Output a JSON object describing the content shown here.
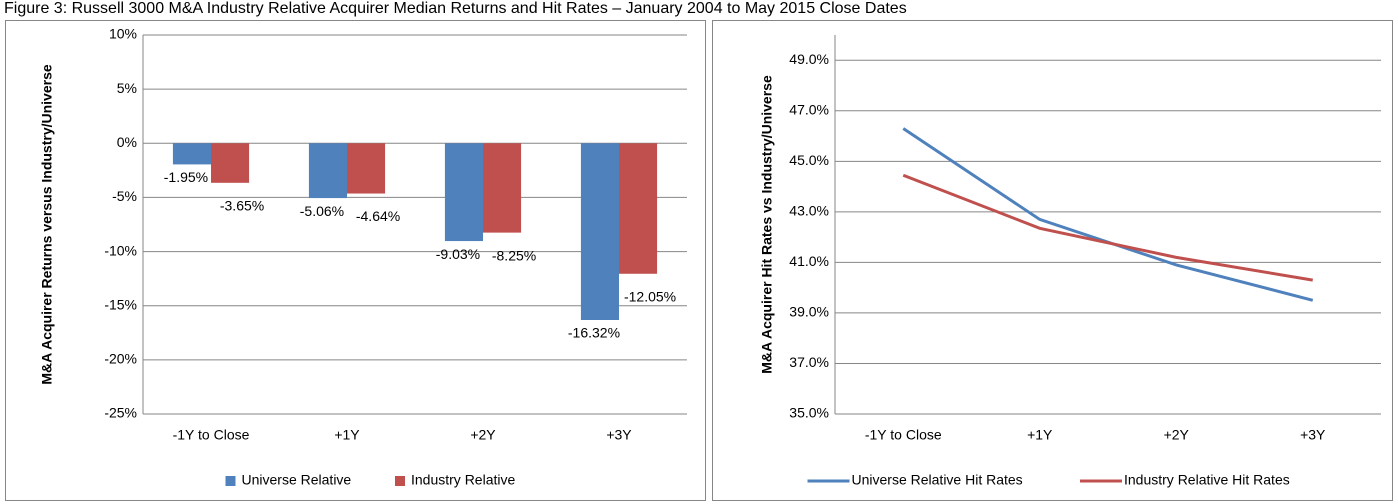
{
  "title": "Figure 3: Russell 3000 M&A Industry Relative Acquirer Median Returns and Hit Rates – January 2004 to May 2015 Close Dates",
  "chart_data": [
    {
      "type": "bar",
      "y_label": "M&A Acquirer Returns versus Industry/Universe",
      "categories": [
        "-1Y to Close",
        "+1Y",
        "+2Y",
        "+3Y"
      ],
      "series": [
        {
          "name": "Universe Relative",
          "color": "#4f81bd",
          "values": [
            -1.95,
            -5.06,
            -9.03,
            -16.32
          ],
          "value_labels": [
            "-1.95%",
            "-5.06%",
            "-9.03%",
            "-16.32%"
          ]
        },
        {
          "name": "Industry Relative",
          "color": "#c0504d",
          "values": [
            -3.65,
            -4.64,
            -8.25,
            -12.05
          ],
          "value_labels": [
            "-3.65%",
            "-4.64%",
            "-8.25%",
            "-12.05%"
          ]
        }
      ],
      "ylim": [
        -25,
        10
      ],
      "yticks": [
        {
          "value": -25,
          "label": "-25%"
        },
        {
          "value": -20,
          "label": "-20%"
        },
        {
          "value": -15,
          "label": "-15%"
        },
        {
          "value": -10,
          "label": "-10%"
        },
        {
          "value": -5,
          "label": "-5%"
        },
        {
          "value": 0,
          "label": "0%"
        },
        {
          "value": 5,
          "label": "5%"
        },
        {
          "value": 10,
          "label": "10%"
        }
      ],
      "grid": true,
      "legend": "bottom"
    },
    {
      "type": "line",
      "y_label": "M&A Acquirer Hit Rates vs Industry/Universe",
      "categories": [
        "-1Y to Close",
        "+1Y",
        "+2Y",
        "+3Y"
      ],
      "series": [
        {
          "name": "Universe Relative Hit Rates",
          "color": "#4f81bd",
          "values": [
            46.3,
            42.7,
            40.9,
            39.5
          ]
        },
        {
          "name": "Industry Relative Hit Rates",
          "color": "#c0504d",
          "values": [
            44.45,
            42.35,
            41.2,
            40.3
          ]
        }
      ],
      "ylim": [
        35,
        50
      ],
      "yticks": [
        {
          "value": 35,
          "label": "35.0%"
        },
        {
          "value": 37,
          "label": "37.0%"
        },
        {
          "value": 39,
          "label": "39.0%"
        },
        {
          "value": 41,
          "label": "41.0%"
        },
        {
          "value": 43,
          "label": "43.0%"
        },
        {
          "value": 45,
          "label": "45.0%"
        },
        {
          "value": 47,
          "label": "47.0%"
        },
        {
          "value": 49,
          "label": "49.0%"
        }
      ],
      "grid": true,
      "legend": "bottom"
    }
  ]
}
